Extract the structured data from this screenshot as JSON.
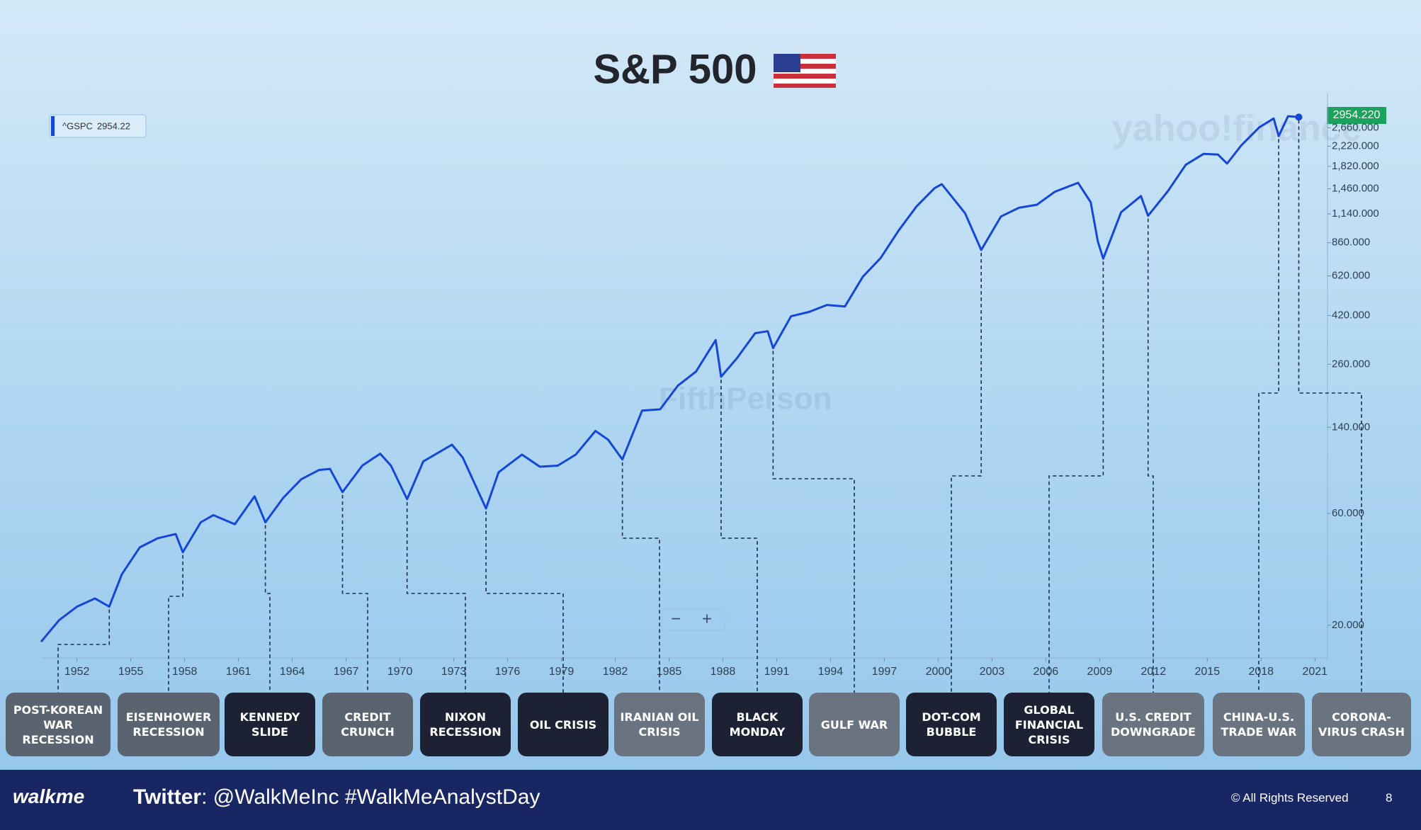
{
  "chart_data": {
    "type": "line",
    "title": "S&P 500",
    "log_scale": true,
    "x": [
      1950,
      1951,
      1952,
      1953,
      1953.8,
      1954.5,
      1955.5,
      1956.5,
      1957.5,
      1957.9,
      1958.9,
      1959.6,
      1960.8,
      1961.9,
      1962.5,
      1963.5,
      1964.5,
      1965.5,
      1966.1,
      1966.8,
      1967.9,
      1968.9,
      1969.5,
      1970.4,
      1971.3,
      1972.9,
      1973.5,
      1974.8,
      1975.5,
      1976.8,
      1977.8,
      1978.8,
      1979.8,
      1980.9,
      1981.6,
      1982.4,
      1983.5,
      1984.5,
      1985.5,
      1986.5,
      1987.6,
      1987.9,
      1988.8,
      1989.8,
      1990.5,
      1990.8,
      1991.8,
      1992.8,
      1993.8,
      1994.8,
      1995.8,
      1996.8,
      1997.8,
      1998.8,
      1999.8,
      2000.2,
      2001.5,
      2002.4,
      2003.5,
      2004.5,
      2005.5,
      2006.5,
      2007.8,
      2008.5,
      2008.9,
      2009.2,
      2010.2,
      2011.3,
      2011.7,
      2012.8,
      2013.8,
      2014.8,
      2015.6,
      2016.1,
      2016.9,
      2017.9,
      2018.7,
      2018.98,
      2019.5,
      2020.1
    ],
    "series": [
      {
        "name": "^GSPC",
        "last_label": "2954.22",
        "color": "#1446d8",
        "values": [
          17,
          21,
          24,
          26,
          24,
          33,
          43,
          47,
          49,
          41,
          55,
          59,
          54,
          71,
          55,
          70,
          84,
          92,
          93,
          74,
          96,
          108,
          96,
          69,
          100,
          118,
          104,
          63,
          90,
          107,
          95,
          96,
          107,
          135,
          124,
          102,
          165,
          167,
          211,
          242,
          330,
          230,
          277,
          353,
          360,
          305,
          417,
          435,
          466,
          459,
          615,
          740,
          970,
          1229,
          1469,
          1527,
          1148,
          800,
          1112,
          1211,
          1248,
          1418,
          1549,
          1280,
          870,
          735,
          1160,
          1360,
          1120,
          1426,
          1848,
          2059,
          2044,
          1870,
          2239,
          2674,
          2914,
          2450,
          2980,
          2954.22
        ]
      }
    ],
    "xlim": [
      1950,
      2021.7
    ],
    "xticks": [
      1952,
      1955,
      1958,
      1961,
      1964,
      1967,
      1970,
      1973,
      1976,
      1979,
      1982,
      1985,
      1988,
      1991,
      1994,
      1997,
      2000,
      2003,
      2006,
      2009,
      2012,
      2015,
      2018,
      2021
    ],
    "ylim": [
      14.5,
      3500
    ],
    "yticks": [
      {
        "value": 20,
        "label": "20.000"
      },
      {
        "value": 60,
        "label": "60.000"
      },
      {
        "value": 140,
        "label": "140.000"
      },
      {
        "value": 260,
        "label": "260.000"
      },
      {
        "value": 420,
        "label": "420.000"
      },
      {
        "value": 620,
        "label": "620.000"
      },
      {
        "value": 860,
        "label": "860.000"
      },
      {
        "value": 1140,
        "label": "1,140.000"
      },
      {
        "value": 1460,
        "label": "1,460.000"
      },
      {
        "value": 1820,
        "label": "1,820.000"
      },
      {
        "value": 2220,
        "label": "2,220.000"
      },
      {
        "value": 2660,
        "label": "2,660.000"
      }
    ],
    "price_tag": "2954.220",
    "watermarks": [
      "yahoo!finance",
      "FifthPerson"
    ],
    "zoom_controls": [
      "−",
      "+"
    ],
    "events": [
      {
        "label": "POST-KOREAN WAR RECESSION",
        "x": 1953.8,
        "color": "#5a6470"
      },
      {
        "label": "EISENHOWER RECESSION",
        "x": 1957.9,
        "color": "#5a6470"
      },
      {
        "label": "KENNEDY SLIDE",
        "x": 1962.5,
        "color": "#1c2233"
      },
      {
        "label": "CREDIT CRUNCH",
        "x": 1966.8,
        "color": "#5a6470"
      },
      {
        "label": "NIXON RECESSION",
        "x": 1970.4,
        "color": "#1c2233"
      },
      {
        "label": "OIL CRISIS",
        "x": 1974.8,
        "color": "#1c2233"
      },
      {
        "label": "IRANIAN OIL CRISIS",
        "x": 1982.4,
        "color": "#6a7480"
      },
      {
        "label": "BLACK MONDAY",
        "x": 1987.9,
        "color": "#1c2233"
      },
      {
        "label": "GULF WAR",
        "x": 1990.8,
        "color": "#6a7480"
      },
      {
        "label": "DOT-COM BUBBLE",
        "x": 2002.4,
        "color": "#1c2233"
      },
      {
        "label": "GLOBAL FINANCIAL CRISIS",
        "x": 2009.2,
        "color": "#1c2233"
      },
      {
        "label": "U.S. CREDIT DOWNGRADE",
        "x": 2011.7,
        "color": "#6a7480"
      },
      {
        "label": "CHINA-U.S. TRADE WAR",
        "x": 2018.98,
        "color": "#6a7480"
      },
      {
        "label": "CORONA-VIRUS CRASH",
        "x": 2020.1,
        "color": "#6a7480"
      }
    ]
  },
  "footer": {
    "logo": "walkme",
    "twitter_label": "Twitter",
    "twitter_text": ": @WalkMeInc #WalkMeAnalystDay",
    "rights": "© All Rights Reserved",
    "page": "8"
  }
}
